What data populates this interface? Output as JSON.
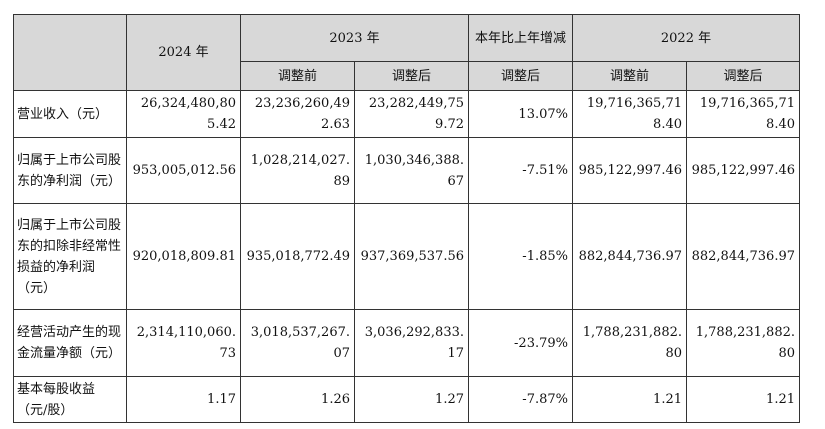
{
  "header": {
    "year_2024": "2024 年",
    "year_2023": "2023 年",
    "change": "本年比上年增减",
    "year_2022": "2022 年",
    "before_adjust": "调整前",
    "after_adjust": "调整后"
  },
  "rows": [
    {
      "label": "营业收入（元）",
      "v2024": "26,324,480,805.42",
      "v2023_before": "23,236,260,492.63",
      "v2023_after": "23,282,449,759.72",
      "change": "13.07%",
      "v2022_before": "19,716,365,718.40",
      "v2022_after": "19,716,365,718.40"
    },
    {
      "label": "归属于上市公司股东的净利润（元）",
      "v2024": "953,005,012.56",
      "v2023_before": "1,028,214,027.89",
      "v2023_after": "1,030,346,388.67",
      "change": "-7.51%",
      "v2022_before": "985,122,997.46",
      "v2022_after": "985,122,997.46"
    },
    {
      "label": "归属于上市公司股东的扣除非经常性损益的净利润（元）",
      "v2024": "920,018,809.81",
      "v2023_before": "935,018,772.49",
      "v2023_after": "937,369,537.56",
      "change": "-1.85%",
      "v2022_before": "882,844,736.97",
      "v2022_after": "882,844,736.97"
    },
    {
      "label": "经营活动产生的现金流量净额（元）",
      "v2024": "2,314,110,060.73",
      "v2023_before": "3,018,537,267.07",
      "v2023_after": "3,036,292,833.17",
      "change": "-23.79%",
      "v2022_before": "1,788,231,882.80",
      "v2022_after": "1,788,231,882.80"
    },
    {
      "label": "基本每股收益（元/股）",
      "v2024": "1.17",
      "v2023_before": "1.26",
      "v2023_after": "1.27",
      "change": "-7.87%",
      "v2022_before": "1.21",
      "v2022_after": "1.21"
    }
  ]
}
